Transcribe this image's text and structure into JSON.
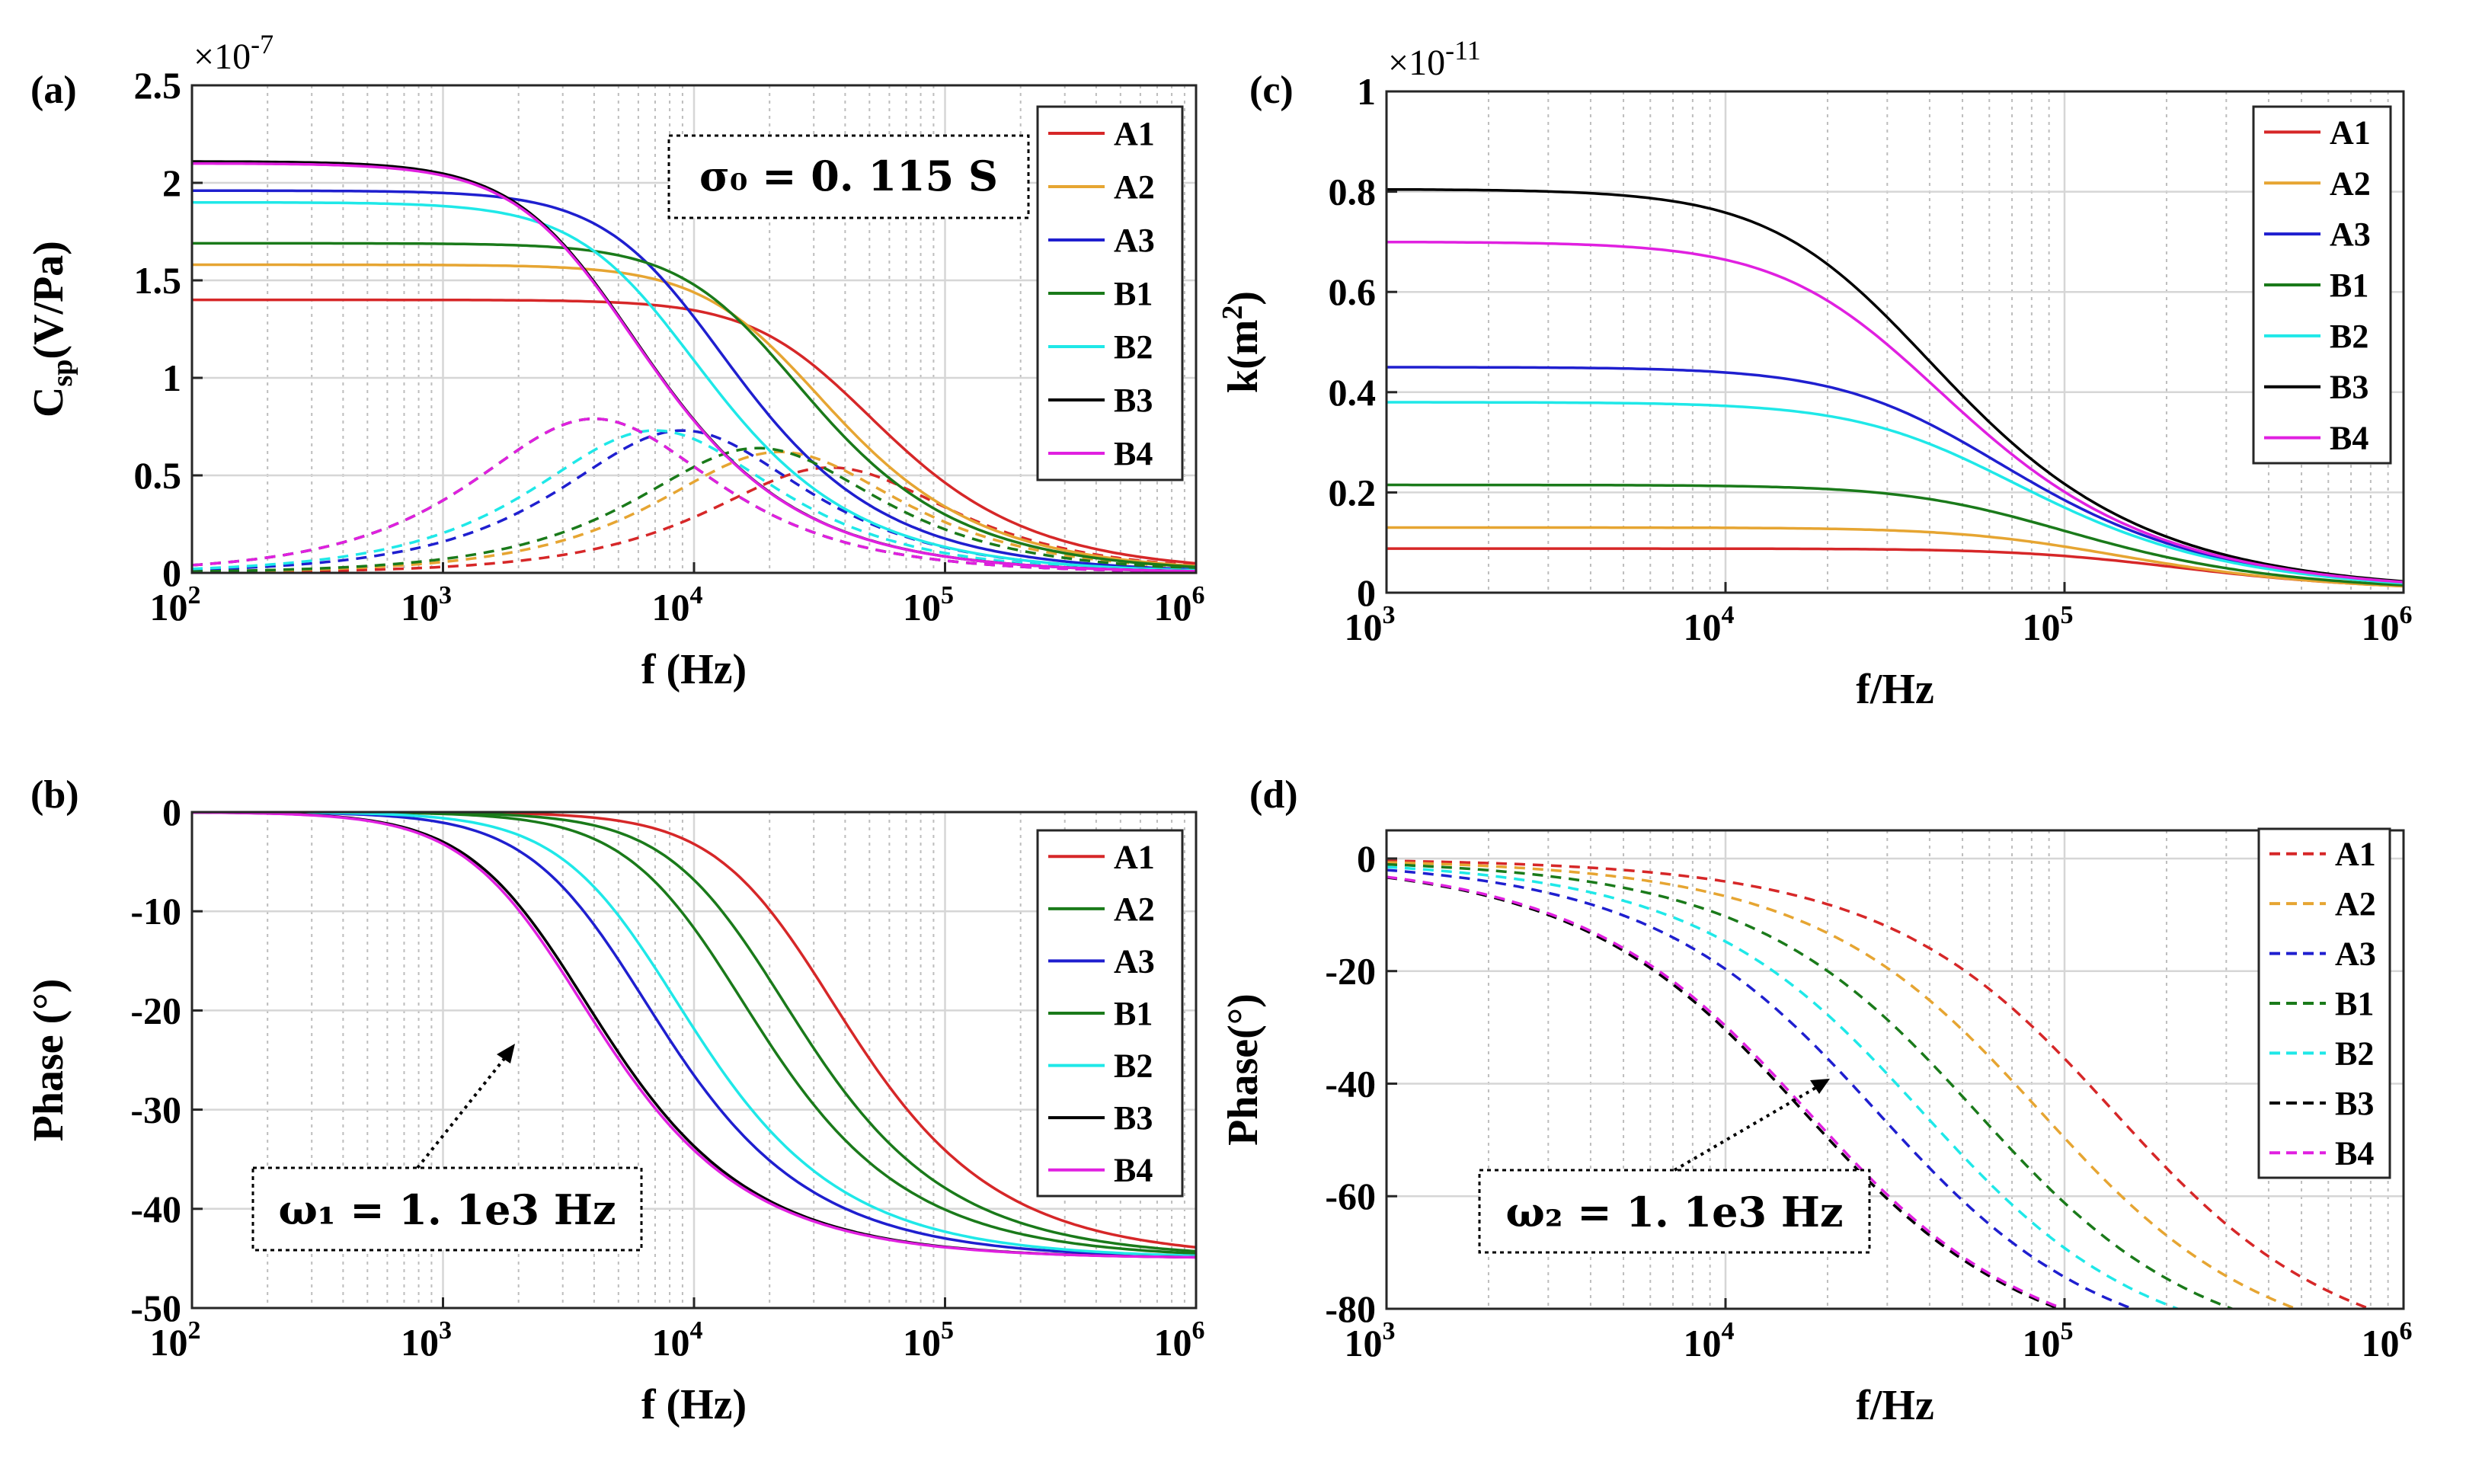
{
  "chart_data": [
    {
      "panel": "(a)",
      "type": "line",
      "xlabel": "f (Hz)",
      "ylabel_main": "C",
      "ylabel_sub": "sp",
      "ylabel_rest": "(V/Pa)",
      "exponent_label": "×10",
      "exponent_power": "-7",
      "xscale": "log",
      "xlim": [
        100,
        1000000
      ],
      "ylim": [
        0,
        2.5
      ],
      "xticks": [
        {
          "base": "10",
          "exp": "2"
        },
        {
          "base": "10",
          "exp": "3"
        },
        {
          "base": "10",
          "exp": "4"
        },
        {
          "base": "10",
          "exp": "5"
        },
        {
          "base": "10",
          "exp": "6"
        }
      ],
      "yticks": [
        "0",
        "0.5",
        "1",
        "1.5",
        "2",
        "2.5"
      ],
      "grid": true,
      "legend_position": "top-right",
      "annotation": "σ₀ = 0. 115 S",
      "series": [
        {
          "name": "A1",
          "color": "#d62728",
          "style": "solid",
          "y0": 1.4,
          "fc": 35000,
          "amp": 0.54
        },
        {
          "name": "A2",
          "color": "#e6a532",
          "style": "solid",
          "y0": 1.58,
          "fc": 22000,
          "amp": 0.62
        },
        {
          "name": "A3",
          "color": "#1f1fcf",
          "style": "solid",
          "y0": 1.96,
          "fc": 9000,
          "amp": 0.73
        },
        {
          "name": "B1",
          "color": "#1a7a1a",
          "style": "solid",
          "y0": 1.69,
          "fc": 18000,
          "amp": 0.64
        },
        {
          "name": "B2",
          "color": "#1fe8e8",
          "style": "solid",
          "y0": 1.9,
          "fc": 7000,
          "amp": 0.73
        },
        {
          "name": "B3",
          "color": "#000000",
          "style": "solid",
          "y0": 2.11,
          "fc": 4000,
          "amp": 0.79
        },
        {
          "name": "B4",
          "color": "#e020e0",
          "style": "solid",
          "y0": 2.1,
          "fc": 4000,
          "amp": 0.79
        }
      ]
    },
    {
      "panel": "(b)",
      "type": "line",
      "xlabel": "f (Hz)",
      "ylabel": "Phase (°)",
      "xscale": "log",
      "xlim": [
        100,
        1000000
      ],
      "ylim": [
        -50,
        0
      ],
      "xticks": [
        {
          "base": "10",
          "exp": "2"
        },
        {
          "base": "10",
          "exp": "3"
        },
        {
          "base": "10",
          "exp": "4"
        },
        {
          "base": "10",
          "exp": "5"
        },
        {
          "base": "10",
          "exp": "6"
        }
      ],
      "yticks": [
        "-50",
        "-40",
        "-30",
        "-20",
        "-10",
        "0"
      ],
      "grid": true,
      "legend_position": "top-right",
      "annotation": "ω₁ = 1. 1e3 Hz",
      "series": [
        {
          "name": "A1",
          "color": "#d62728",
          "style": "solid",
          "fc": 25000
        },
        {
          "name": "A2",
          "color": "#1a7a1a",
          "style": "solid",
          "fc": 16000
        },
        {
          "name": "A3",
          "color": "#1f1fcf",
          "style": "solid",
          "fc": 4500
        },
        {
          "name": "B1",
          "color": "#1a7a1a",
          "style": "solid",
          "fc": 11000
        },
        {
          "name": "B2",
          "color": "#1fe8e8",
          "style": "solid",
          "fc": 6000
        },
        {
          "name": "B3",
          "color": "#000000",
          "style": "solid",
          "fc": 2600
        },
        {
          "name": "B4",
          "color": "#e020e0",
          "style": "solid",
          "fc": 2500
        }
      ]
    },
    {
      "panel": "(c)",
      "type": "line",
      "xlabel": "f/Hz",
      "ylabel_main": "k(m",
      "ylabel_sup": "2",
      "ylabel_rest": ")",
      "exponent_label": "×10",
      "exponent_power": "-11",
      "xscale": "log",
      "xlim": [
        1000,
        1000000
      ],
      "ylim": [
        0,
        1
      ],
      "xticks": [
        {
          "base": "10",
          "exp": "3"
        },
        {
          "base": "10",
          "exp": "4"
        },
        {
          "base": "10",
          "exp": "5"
        },
        {
          "base": "10",
          "exp": "6"
        }
      ],
      "yticks": [
        "0",
        "0.2",
        "0.4",
        "0.6",
        "0.8",
        "1"
      ],
      "grid": true,
      "legend_position": "top-right",
      "series": [
        {
          "name": "A1",
          "color": "#d62728",
          "style": "solid",
          "y0": 0.088,
          "fc": 150000
        },
        {
          "name": "A2",
          "color": "#e6a532",
          "style": "solid",
          "y0": 0.13,
          "fc": 100000
        },
        {
          "name": "A3",
          "color": "#1f1fcf",
          "style": "solid",
          "y0": 0.45,
          "fc": 45000
        },
        {
          "name": "B1",
          "color": "#1a7a1a",
          "style": "solid",
          "y0": 0.215,
          "fc": 70000
        },
        {
          "name": "B2",
          "color": "#1fe8e8",
          "style": "solid",
          "y0": 0.38,
          "fc": 50000
        },
        {
          "name": "B3",
          "color": "#000000",
          "style": "solid",
          "y0": 0.805,
          "fc": 28000
        },
        {
          "name": "B4",
          "color": "#e020e0",
          "style": "solid",
          "y0": 0.7,
          "fc": 30000
        }
      ]
    },
    {
      "panel": "(d)",
      "type": "line",
      "xlabel": "f/Hz",
      "ylabel": "Phase(°)",
      "xscale": "log",
      "xlim": [
        1000,
        1000000
      ],
      "ylim": [
        -80,
        5
      ],
      "xticks": [
        {
          "base": "10",
          "exp": "3"
        },
        {
          "base": "10",
          "exp": "4"
        },
        {
          "base": "10",
          "exp": "5"
        },
        {
          "base": "10",
          "exp": "6"
        }
      ],
      "yticks": [
        "-80",
        "-60",
        "-40",
        "-20",
        "0"
      ],
      "grid": true,
      "legend_position": "top-right",
      "annotation": "ω₂ = 1. 1e3 Hz",
      "series": [
        {
          "name": "A1",
          "color": "#d62728",
          "style": "dashed",
          "fc": 140000
        },
        {
          "name": "A2",
          "color": "#e6a532",
          "style": "dashed",
          "fc": 85000
        },
        {
          "name": "A3",
          "color": "#1f1fcf",
          "style": "dashed",
          "fc": 28000
        },
        {
          "name": "B1",
          "color": "#1a7a1a",
          "style": "dashed",
          "fc": 55000
        },
        {
          "name": "B2",
          "color": "#1fe8e8",
          "style": "dashed",
          "fc": 38000
        },
        {
          "name": "B3",
          "color": "#000000",
          "style": "dashed",
          "fc": 17000
        },
        {
          "name": "B4",
          "color": "#e020e0",
          "style": "dashed",
          "fc": 17500
        }
      ]
    }
  ]
}
